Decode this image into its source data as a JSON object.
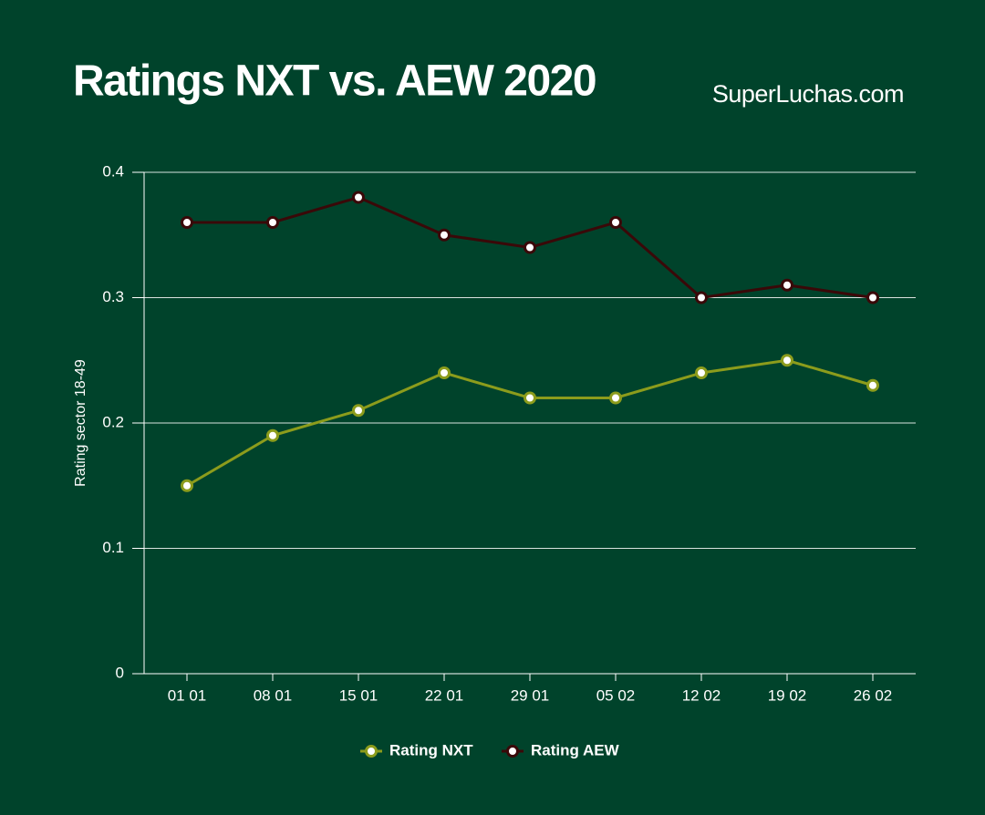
{
  "chart_data": {
    "type": "line",
    "title": "Ratings NXT vs. AEW 2020",
    "source": "SuperLuchas.com",
    "y_label": "Rating sector 18-49",
    "categories": [
      "01 01",
      "08 01",
      "15 01",
      "22 01",
      "29 01",
      "05 02",
      "12 02",
      "19 02",
      "26 02"
    ],
    "series": [
      {
        "name": "Rating NXT",
        "color": "#8c9c1c",
        "values": [
          0.15,
          0.19,
          0.21,
          0.24,
          0.22,
          0.22,
          0.24,
          0.25,
          0.23
        ]
      },
      {
        "name": "Rating AEW",
        "color": "#3a0808",
        "values": [
          0.36,
          0.36,
          0.38,
          0.35,
          0.34,
          0.36,
          0.3,
          0.31,
          0.3
        ]
      }
    ],
    "ylim": [
      0,
      0.4
    ],
    "yticks": [
      0,
      0.1,
      0.2,
      0.3,
      0.4
    ],
    "grid": true,
    "legend": "bottom"
  }
}
